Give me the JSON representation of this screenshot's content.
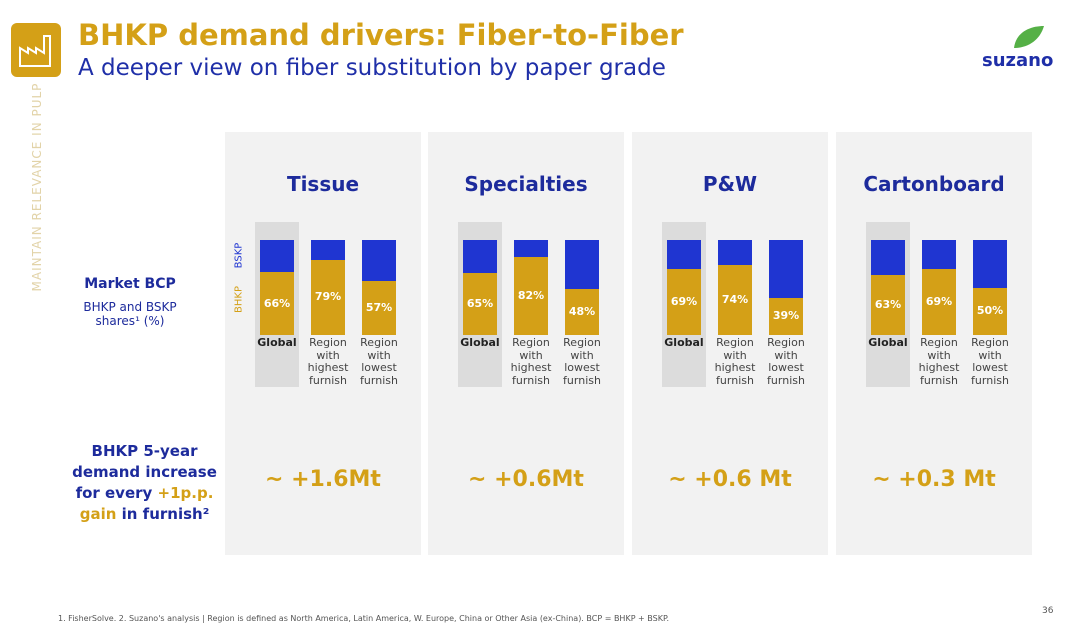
{
  "header": {
    "title": "BHKP demand drivers: Fiber-to-Fiber",
    "subtitle": "A deeper view on fiber substitution by paper grade",
    "logo": "suzano"
  },
  "sidebar": "MAINTAIN RELEVANCE IN PULP",
  "left_labels": {
    "market": "Market BCP",
    "shares": "BHKP and BSKP shares¹ (%)",
    "demand": [
      "BHKP 5-year demand increase for every ",
      "+1p.p.",
      "gain",
      " in furnish²"
    ]
  },
  "chart_data": [
    {
      "type": "stacked_bar",
      "title": "Tissue",
      "categories": [
        "Global",
        "Region with highest furnish",
        "Region with lowest furnish"
      ],
      "ylim": [
        0,
        100
      ],
      "legend": true,
      "series": [
        {
          "name": "BHKP",
          "color": "#d4a017",
          "values": [
            66,
            79,
            57
          ],
          "value_labels": [
            "66%",
            "79%",
            "57%"
          ]
        },
        {
          "name": "BSKP",
          "color": "#1f35d1",
          "values": [
            34,
            21,
            43
          ]
        }
      ],
      "annotation": "~ +1.6Mt"
    },
    {
      "type": "stacked_bar",
      "title": "Specialties",
      "categories": [
        "Global",
        "Region with highest furnish",
        "Region with lowest furnish"
      ],
      "ylim": [
        0,
        100
      ],
      "legend": false,
      "series": [
        {
          "name": "BHKP",
          "color": "#d4a017",
          "values": [
            65,
            82,
            48
          ],
          "value_labels": [
            "65%",
            "82%",
            "48%"
          ]
        },
        {
          "name": "BSKP",
          "color": "#1f35d1",
          "values": [
            35,
            18,
            52
          ]
        }
      ],
      "annotation": "~ +0.6Mt"
    },
    {
      "type": "stacked_bar",
      "title": "P&W",
      "categories": [
        "Global",
        "Region with highest furnish",
        "Region with lowest furnish"
      ],
      "ylim": [
        0,
        100
      ],
      "legend": false,
      "series": [
        {
          "name": "BHKP",
          "color": "#d4a017",
          "values": [
            69,
            74,
            39
          ],
          "value_labels": [
            "69%",
            "74%",
            "39%"
          ]
        },
        {
          "name": "BSKP",
          "color": "#1f35d1",
          "values": [
            31,
            26,
            61
          ]
        }
      ],
      "annotation": "~ +0.6 Mt"
    },
    {
      "type": "stacked_bar",
      "title": "Cartonboard",
      "categories": [
        "Global",
        "Region with highest furnish",
        "Region with lowest furnish"
      ],
      "ylim": [
        0,
        100
      ],
      "legend": false,
      "series": [
        {
          "name": "BHKP",
          "color": "#d4a017",
          "values": [
            63,
            69,
            50
          ],
          "value_labels": [
            "63%",
            "69%",
            "50%"
          ]
        },
        {
          "name": "BSKP",
          "color": "#1f35d1",
          "values": [
            37,
            31,
            50
          ]
        }
      ],
      "annotation": "~ +0.3 Mt"
    }
  ],
  "footnote": "1. FisherSolve. 2. Suzano's analysis | Region is defined as North America, Latin America, W. Europe, China  or Other Asia (ex-China). BCP = BHKP + BSKP.",
  "page_number": "36"
}
